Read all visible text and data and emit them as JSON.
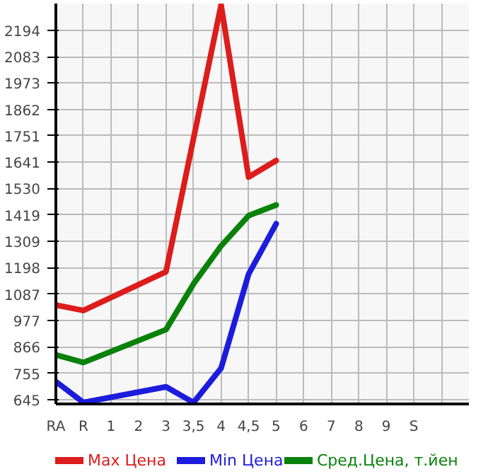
{
  "chart_data": {
    "type": "line",
    "categories": [
      "RA",
      "R",
      "1",
      "2",
      "3",
      "3,5",
      "4",
      "4,5",
      "5",
      "6",
      "7",
      "8",
      "9",
      "S",
      null
    ],
    "ylim": [
      626,
      2306
    ],
    "yticks": [
      645,
      755,
      866,
      977,
      1087,
      1198,
      1309,
      1419,
      1530,
      1641,
      1751,
      1862,
      1973,
      2083,
      2194
    ],
    "series": [
      {
        "name": "Max Цена",
        "color": "#dd1c1c",
        "values": [
          1041,
          1018,
          null,
          null,
          1181,
          null,
          2300,
          1578,
          1647,
          null,
          null,
          null,
          null,
          null,
          null
        ]
      },
      {
        "name": "Min Цена",
        "color": "#1c1cdd",
        "values": [
          720,
          632,
          null,
          null,
          698,
          632,
          776,
          1171,
          1382,
          null,
          null,
          null,
          null,
          null,
          null
        ]
      },
      {
        "name": "Сред.Цена, т.йен",
        "color": "#0a820a",
        "values": [
          832,
          800,
          null,
          null,
          938,
          1130,
          1289,
          1416,
          1461,
          null,
          null,
          null,
          null,
          null,
          null
        ]
      }
    ],
    "grid": true,
    "legend": "bottom"
  }
}
